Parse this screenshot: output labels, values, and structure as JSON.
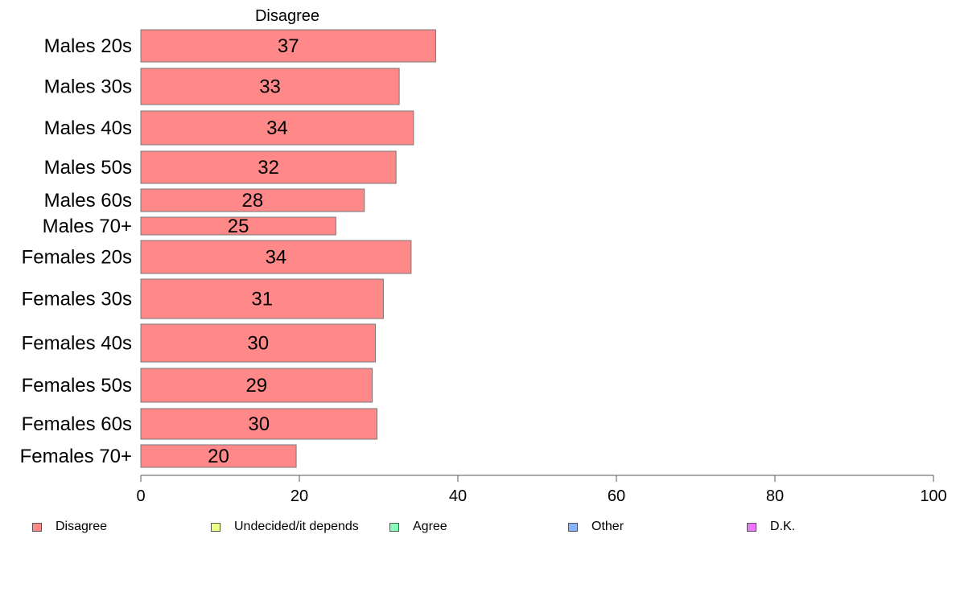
{
  "chart_data": {
    "type": "bar",
    "orientation": "horizontal",
    "title": "Disagree",
    "categories": [
      "Males 20s",
      "Males 30s",
      "Males 40s",
      "Males 50s",
      "Males 60s",
      "Males 70+",
      "Females 20s",
      "Females 30s",
      "Females 40s",
      "Females 50s",
      "Females 60s",
      "Females 70+"
    ],
    "series": [
      {
        "name": "Disagree",
        "color": "#ff8888",
        "values": [
          37.2,
          32.6,
          34.4,
          32.2,
          28.2,
          24.6,
          34.1,
          30.6,
          29.6,
          29.2,
          29.8,
          19.6
        ],
        "data_labels": [
          "37",
          "33",
          "34",
          "32",
          "28",
          "25",
          "34",
          "31",
          "30",
          "29",
          "30",
          "20"
        ]
      }
    ],
    "xlim": [
      0,
      100
    ],
    "xticks": [
      0,
      20,
      40,
      60,
      80,
      100
    ],
    "grid": false,
    "legend_position": "bottom",
    "legend": [
      {
        "label": "Disagree",
        "color": "#ff8888"
      },
      {
        "label": "Undecided/it depends",
        "color": "#eeff88"
      },
      {
        "label": "Agree",
        "color": "#88ffbb"
      },
      {
        "label": "Other",
        "color": "#88b4ff"
      },
      {
        "label": "D.K.",
        "color": "#ee77ff"
      }
    ]
  }
}
